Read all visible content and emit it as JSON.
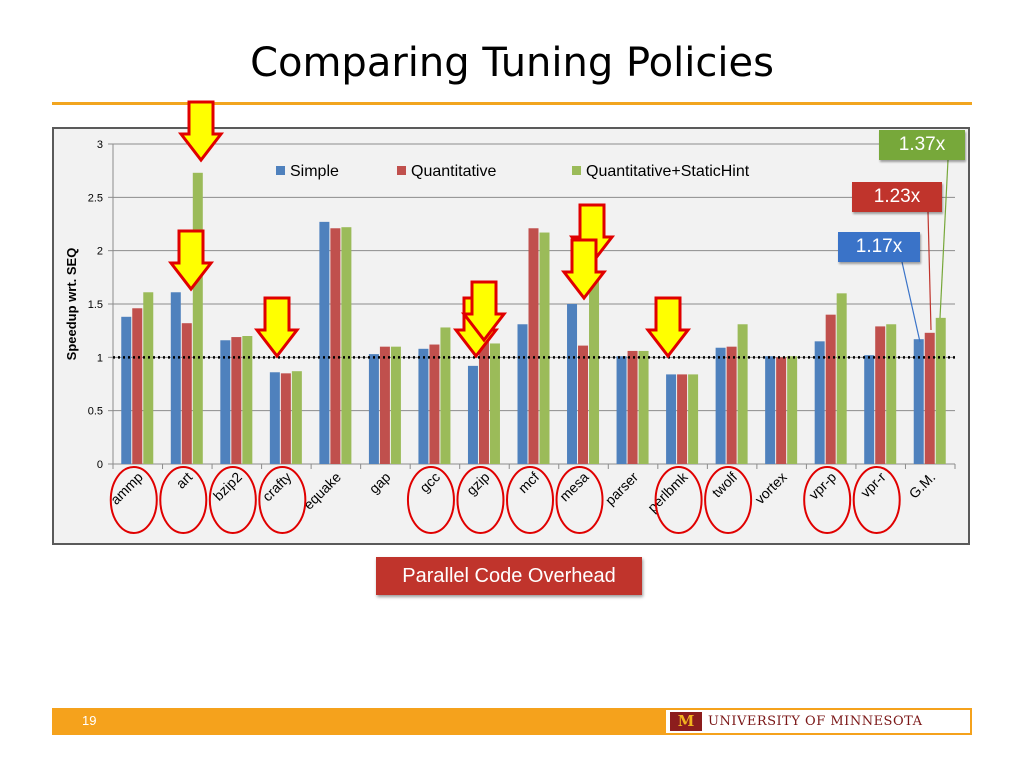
{
  "slide": {
    "title": "Comparing Tuning Policies",
    "page_number": "19",
    "overhead_label": "Parallel Code Overhead",
    "logo_text": "UNIVERSITY OF MINNESOTA",
    "logo_mark": "M",
    "accent_color": "#f2a51f"
  },
  "callouts": {
    "quant_static": "1.37x",
    "quant": "1.23x",
    "simple": "1.17x"
  },
  "chart_data": {
    "type": "bar",
    "ylabel": "Speedup wrt. SEQ",
    "xlabel": "",
    "ylim": [
      0,
      3
    ],
    "yticks": [
      "0",
      "0.5",
      "1",
      "1.5",
      "2",
      "2.5",
      "3"
    ],
    "reference_line": 1,
    "legend_position": "top",
    "categories": [
      "ammp",
      "art",
      "bzip2",
      "crafty",
      "equake",
      "gap",
      "gcc",
      "gzip",
      "mcf",
      "mesa",
      "parser",
      "perlbmk",
      "twolf",
      "vortex",
      "vpr-p",
      "vpr-r",
      "G.M."
    ],
    "series": [
      {
        "name": "Simple",
        "color": "#4f81bd",
        "values": [
          1.38,
          1.61,
          1.16,
          0.86,
          2.27,
          1.03,
          1.08,
          0.92,
          1.31,
          1.5,
          1.01,
          0.84,
          1.09,
          1.01,
          1.15,
          1.02,
          1.17
        ]
      },
      {
        "name": "Quantitative",
        "color": "#c0504d",
        "values": [
          1.46,
          1.32,
          1.19,
          0.85,
          2.21,
          1.1,
          1.12,
          1.15,
          2.21,
          1.11,
          1.06,
          0.84,
          1.1,
          1.0,
          1.4,
          1.29,
          1.23
        ]
      },
      {
        "name": "Quantitative+StaticHint",
        "color": "#9bbb59",
        "values": [
          1.61,
          2.73,
          1.2,
          0.87,
          2.22,
          1.1,
          1.28,
          1.13,
          2.17,
          1.72,
          1.06,
          0.84,
          1.31,
          1.01,
          1.6,
          1.31,
          1.37
        ]
      }
    ],
    "highlighted_categories": [
      "ammp",
      "art",
      "bzip2",
      "crafty",
      "gcc",
      "gzip",
      "mcf",
      "mesa",
      "perlbmk",
      "twolf",
      "vpr-p",
      "vpr-r"
    ],
    "arrow_categories": [
      "art",
      "art",
      "crafty",
      "gzip",
      "gzip",
      "mesa",
      "mesa",
      "perlbmk"
    ]
  }
}
